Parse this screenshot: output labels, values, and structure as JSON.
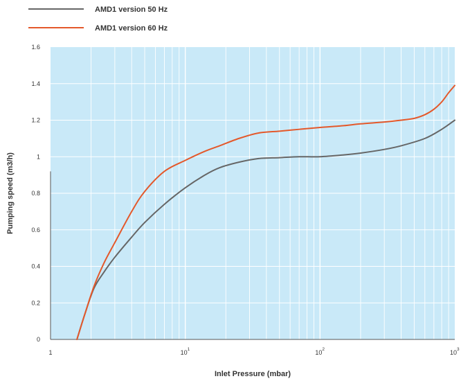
{
  "chart_data": {
    "type": "line",
    "xlabel": "Inlet Pressure (mbar)",
    "ylabel": "Pumping speed (m3/h)",
    "x_scale": "log",
    "xlim": [
      1,
      1000
    ],
    "ylim": [
      0,
      1.6
    ],
    "x_ticks": [
      {
        "value": 1,
        "base": "1",
        "exp": ""
      },
      {
        "value": 10,
        "base": "10",
        "exp": "1"
      },
      {
        "value": 100,
        "base": "10",
        "exp": "2"
      },
      {
        "value": 1000,
        "base": "10",
        "exp": "3"
      }
    ],
    "y_ticks": [
      {
        "value": 0,
        "label": "0"
      },
      {
        "value": 0.2,
        "label": "0.2"
      },
      {
        "value": 0.4,
        "label": "0.4"
      },
      {
        "value": 0.6,
        "label": "0.6"
      },
      {
        "value": 0.8,
        "label": "0.8"
      },
      {
        "value": 1.0,
        "label": "1"
      },
      {
        "value": 1.2,
        "label": "1.2"
      },
      {
        "value": 1.4,
        "label": "1.4"
      },
      {
        "value": 1.6,
        "label": "1.6"
      }
    ],
    "grid": true,
    "legend_position": "top-left",
    "background_color": "#c9e9f8",
    "grid_color": "#ffffff",
    "series": [
      {
        "name": "AMD1 version 50 Hz",
        "color": "#666666",
        "x": [
          1.57,
          1.8,
          2.1,
          2.5,
          3,
          4,
          5,
          7,
          10,
          14,
          18,
          25,
          35,
          50,
          70,
          100,
          150,
          200,
          300,
          400,
          600,
          800,
          1000
        ],
        "y": [
          0,
          0.14,
          0.28,
          0.37,
          0.45,
          0.56,
          0.64,
          0.74,
          0.83,
          0.9,
          0.94,
          0.97,
          0.99,
          0.995,
          1.0,
          1.0,
          1.01,
          1.02,
          1.04,
          1.06,
          1.1,
          1.15,
          1.2
        ]
      },
      {
        "name": "AMD1 version 60 Hz",
        "color": "#e4582a",
        "x": [
          1.57,
          1.8,
          2.1,
          2.5,
          3,
          4,
          5,
          7,
          10,
          14,
          18,
          25,
          35,
          50,
          70,
          100,
          150,
          200,
          300,
          400,
          500,
          600,
          700,
          800,
          900,
          1000
        ],
        "y": [
          0,
          0.14,
          0.29,
          0.42,
          0.53,
          0.7,
          0.81,
          0.92,
          0.98,
          1.03,
          1.06,
          1.1,
          1.13,
          1.14,
          1.15,
          1.16,
          1.17,
          1.18,
          1.19,
          1.2,
          1.21,
          1.23,
          1.26,
          1.3,
          1.35,
          1.39
        ]
      }
    ]
  }
}
